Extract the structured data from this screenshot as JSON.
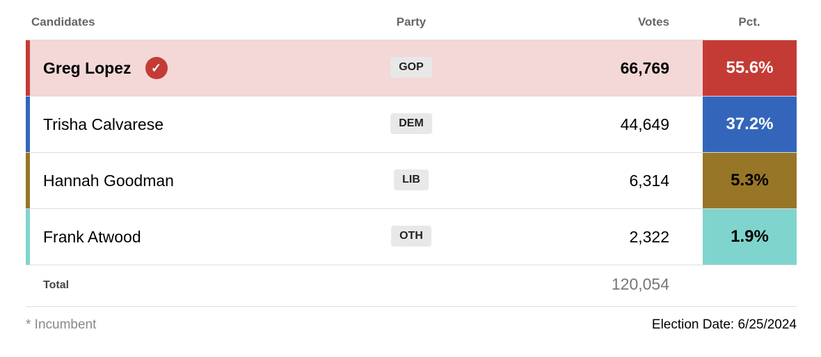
{
  "header": {
    "candidates": "Candidates",
    "party": "Party",
    "votes": "Votes",
    "pct": "Pct."
  },
  "rows": [
    {
      "name": "Greg Lopez",
      "winner": true,
      "party": "GOP",
      "votes": "66,769",
      "pct": "55.6%",
      "color": "#c43b35",
      "bg": "#f4d7d7",
      "pct_text_color": "#ffffff",
      "bold": true
    },
    {
      "name": "Trisha Calvarese",
      "winner": false,
      "party": "DEM",
      "votes": "44,649",
      "pct": "37.2%",
      "color": "#3366bb",
      "bg": "#ffffff",
      "pct_text_color": "#ffffff",
      "bold": false
    },
    {
      "name": "Hannah Goodman",
      "winner": false,
      "party": "LIB",
      "votes": "6,314",
      "pct": "5.3%",
      "color": "#987627",
      "bg": "#ffffff",
      "pct_text_color": "#000000",
      "bold": false
    },
    {
      "name": "Frank Atwood",
      "winner": false,
      "party": "OTH",
      "votes": "2,322",
      "pct": "1.9%",
      "color": "#7fd5cd",
      "bg": "#ffffff",
      "pct_text_color": "#000000",
      "bold": false
    }
  ],
  "total": {
    "label": "Total",
    "votes": "120,054"
  },
  "footer": {
    "incumbent_note": "* Incumbent",
    "election_date": "Election Date: 6/25/2024"
  },
  "icons": {
    "winner": "check-circle-icon"
  }
}
